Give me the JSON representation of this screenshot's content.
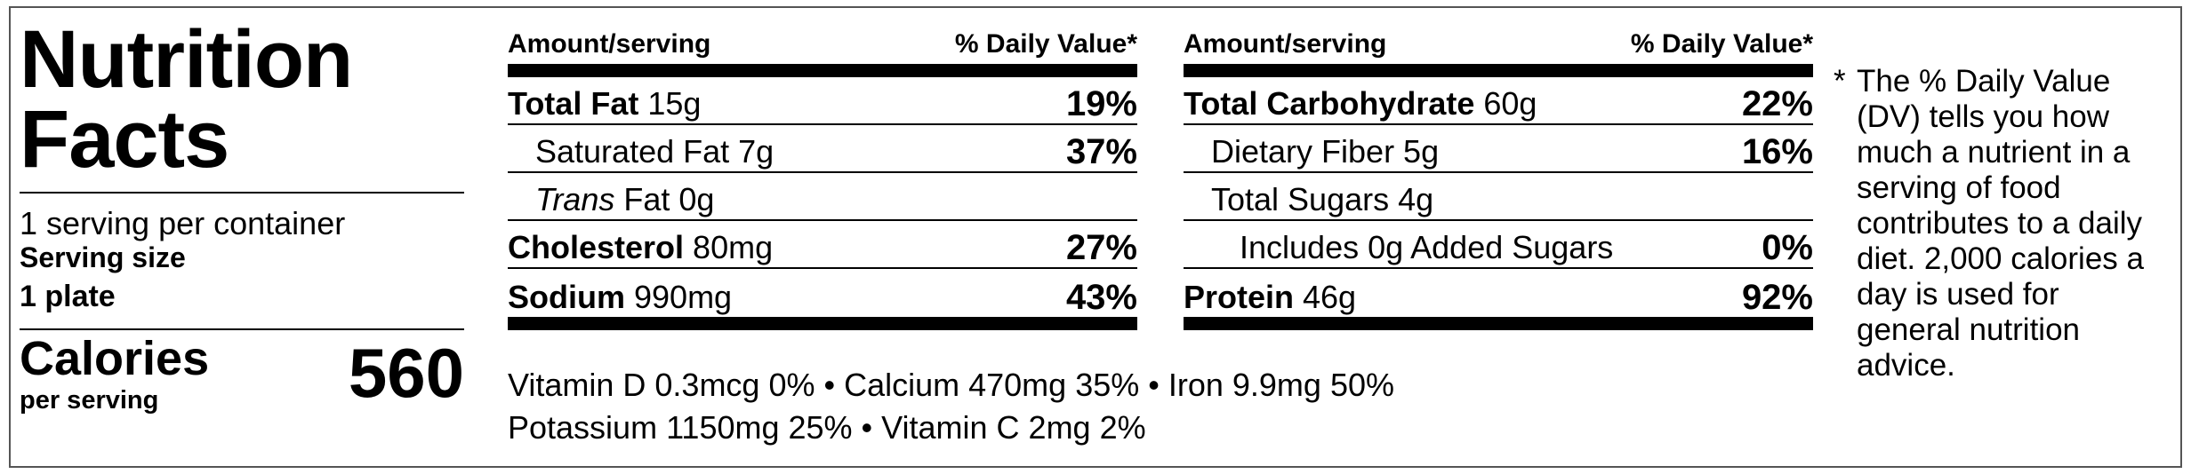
{
  "title_line1": "Nutrition",
  "title_line2": "Facts",
  "servings_per_container": "1 serving per container",
  "serving_size_label": "Serving size",
  "serving_size_value": "1 plate",
  "calories_label": "Calories",
  "per_serving_label": "per serving",
  "calories_value": "560",
  "header": {
    "amount": "Amount/serving",
    "daily_value": "% Daily Value*"
  },
  "left_table": [
    {
      "name": "Total Fat",
      "amount": " 15g",
      "bold": true,
      "pct": "19%"
    },
    {
      "name": "Saturated Fat 7g",
      "amount": "",
      "bold": false,
      "pct": "37%"
    },
    {
      "italic": "Trans",
      "name": " Fat 0g",
      "amount": "",
      "bold": false,
      "pct": ""
    },
    {
      "name": "Cholesterol",
      "amount": " 80mg",
      "bold": true,
      "pct": "27%"
    },
    {
      "name": "Sodium",
      "amount": " 990mg",
      "bold": true,
      "pct": "43%"
    }
  ],
  "right_table": [
    {
      "name": "Total Carbohydrate",
      "amount": " 60g",
      "bold": true,
      "pct": "22%"
    },
    {
      "name": "Dietary Fiber 5g",
      "amount": "",
      "bold": false,
      "pct": "16%"
    },
    {
      "name": "Total Sugars 4g",
      "amount": "",
      "bold": false,
      "pct": ""
    },
    {
      "name": "Includes 0g Added Sugars",
      "amount": "",
      "bold": false,
      "pct": "0%"
    },
    {
      "name": "Protein",
      "amount": " 46g",
      "bold": true,
      "pct": "92%"
    }
  ],
  "vitamins_line1": "Vitamin D 0.3mcg 0% • Calcium 470mg 35% • Iron 9.9mg 50%",
  "vitamins_line2": "Potassium 1150mg 25% • Vitamin C 2mg 2%",
  "footnote_asterisk": "*",
  "footnote_text": "The % Daily Value (DV) tells you how much a nutrient in a serving of food contributes to a daily diet. 2,000 calories a day is used for general nutrition advice."
}
